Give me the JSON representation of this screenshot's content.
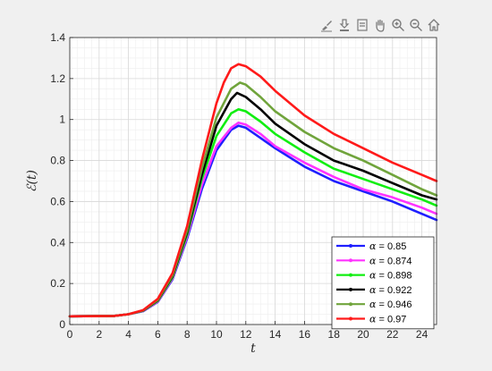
{
  "toolbar": {
    "icons": [
      "brush-icon",
      "data-cursor-icon",
      "data-tips-icon",
      "pan-hand-icon",
      "zoom-in-icon",
      "zoom-out-icon",
      "home-icon"
    ]
  },
  "colors": {
    "background": "#f0f0f0",
    "axes_background": "#ffffff",
    "grid_major": "#d9d9d9",
    "grid_minor": "#eeeeee",
    "axis": "#262626"
  },
  "chart_data": {
    "type": "line",
    "title": "",
    "xlabel": "t",
    "ylabel": "ℰ(t)",
    "xlim": [
      0,
      25
    ],
    "ylim": [
      0,
      1.4
    ],
    "xticks": [
      0,
      2,
      4,
      6,
      8,
      10,
      12,
      14,
      16,
      18,
      20,
      22,
      24
    ],
    "yticks": [
      0,
      0.2,
      0.4,
      0.6,
      0.8,
      1,
      1.2,
      1.4
    ],
    "ytick_labels": [
      "0",
      "0.2",
      "0.4",
      "0.6",
      "0.8",
      "1",
      "1.2",
      "1.4"
    ],
    "grid": true,
    "minor_grid": true,
    "legend_position": "bottom-right",
    "series": [
      {
        "name_symbol": "α",
        "name_value": " = 0.85",
        "color": "#1f1fff",
        "x": [
          0,
          3,
          4,
          5,
          6,
          7,
          8,
          9,
          10,
          11,
          11.5,
          12,
          13,
          14,
          16,
          18,
          20,
          22,
          24,
          25
        ],
        "y": [
          0.04,
          0.042,
          0.05,
          0.065,
          0.11,
          0.22,
          0.42,
          0.66,
          0.85,
          0.95,
          0.97,
          0.96,
          0.91,
          0.86,
          0.77,
          0.7,
          0.65,
          0.6,
          0.54,
          0.51
        ]
      },
      {
        "name_symbol": "α",
        "name_value": " = 0.874",
        "color": "#ff33ff",
        "x": [
          0,
          3,
          4,
          5,
          6,
          7,
          8,
          9,
          10,
          11,
          11.5,
          12,
          13,
          14,
          16,
          18,
          20,
          22,
          24,
          25
        ],
        "y": [
          0.04,
          0.042,
          0.05,
          0.066,
          0.112,
          0.225,
          0.43,
          0.68,
          0.87,
          0.96,
          0.985,
          0.975,
          0.93,
          0.87,
          0.79,
          0.72,
          0.66,
          0.62,
          0.57,
          0.54
        ]
      },
      {
        "name_symbol": "α",
        "name_value": " = 0.898",
        "color": "#11ee11",
        "x": [
          0,
          3,
          4,
          5,
          6,
          7,
          8,
          9,
          10,
          11,
          11.5,
          12,
          13,
          14,
          16,
          18,
          20,
          22,
          24,
          25
        ],
        "y": [
          0.04,
          0.042,
          0.05,
          0.067,
          0.115,
          0.23,
          0.44,
          0.71,
          0.92,
          1.03,
          1.05,
          1.04,
          0.99,
          0.93,
          0.84,
          0.76,
          0.71,
          0.66,
          0.61,
          0.58
        ]
      },
      {
        "name_symbol": "α",
        "name_value": " = 0.922",
        "color": "#000000",
        "x": [
          0,
          3,
          4,
          5,
          6,
          7,
          8,
          9,
          10,
          11,
          11.4,
          12,
          13,
          14,
          16,
          18,
          20,
          22,
          24,
          25
        ],
        "y": [
          0.04,
          0.042,
          0.05,
          0.068,
          0.118,
          0.235,
          0.45,
          0.73,
          0.97,
          1.1,
          1.13,
          1.11,
          1.05,
          0.98,
          0.88,
          0.8,
          0.75,
          0.69,
          0.63,
          0.61
        ]
      },
      {
        "name_symbol": "α",
        "name_value": " = 0.946",
        "color": "#70a43c",
        "x": [
          0,
          3,
          4,
          5,
          6,
          7,
          8,
          9,
          10,
          11,
          11.6,
          12,
          13,
          14,
          16,
          18,
          20,
          22,
          24,
          25
        ],
        "y": [
          0.04,
          0.042,
          0.05,
          0.069,
          0.12,
          0.24,
          0.46,
          0.76,
          1.01,
          1.15,
          1.18,
          1.17,
          1.11,
          1.04,
          0.94,
          0.86,
          0.8,
          0.73,
          0.66,
          0.63
        ]
      },
      {
        "name_symbol": "α",
        "name_value": " = 0.97",
        "color": "#ff1a1a",
        "x": [
          0,
          3,
          4,
          5,
          6,
          7,
          8,
          9,
          10,
          10.5,
          11,
          11.5,
          12,
          13,
          14,
          16,
          18,
          20,
          22,
          24,
          25
        ],
        "y": [
          0.04,
          0.042,
          0.05,
          0.07,
          0.125,
          0.25,
          0.48,
          0.8,
          1.08,
          1.18,
          1.25,
          1.27,
          1.26,
          1.21,
          1.14,
          1.02,
          0.93,
          0.86,
          0.79,
          0.73,
          0.7
        ]
      }
    ]
  }
}
